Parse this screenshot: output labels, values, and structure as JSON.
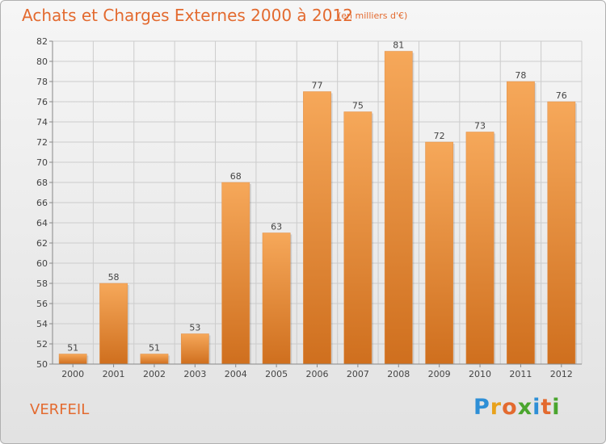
{
  "header": {
    "title": "Achats et Charges Externes 2000 à 2012",
    "unit": "(en milliers d'€)"
  },
  "footer": {
    "commune": "VERFEIL",
    "logo": {
      "letters": [
        "P",
        "r",
        "o",
        "x",
        "i",
        "t",
        "i"
      ],
      "colors": [
        "#2e8fd6",
        "#e8a21c",
        "#e36a2f",
        "#4aa52e",
        "#2e8fd6",
        "#e36a2f",
        "#4aa52e"
      ]
    }
  },
  "colors": {
    "bar_top": "#f6a85a",
    "bar_bottom": "#cf6f1e",
    "accent": "#e36a2f",
    "grid": "#cccccc"
  },
  "chart_data": {
    "type": "bar",
    "title": "Achats et Charges Externes 2000 à 2012",
    "subtitle": "(en milliers d'€)",
    "categories": [
      "2000",
      "2001",
      "2002",
      "2003",
      "2004",
      "2005",
      "2006",
      "2007",
      "2008",
      "2009",
      "2010",
      "2011",
      "2012"
    ],
    "values": [
      51,
      58,
      51,
      53,
      68,
      63,
      77,
      75,
      81,
      72,
      73,
      78,
      76
    ],
    "ylim": [
      50,
      82
    ],
    "yticks": [
      50,
      52,
      54,
      56,
      58,
      60,
      62,
      64,
      66,
      68,
      70,
      72,
      74,
      76,
      78,
      80,
      82
    ],
    "grid": true,
    "data_labels": true
  }
}
